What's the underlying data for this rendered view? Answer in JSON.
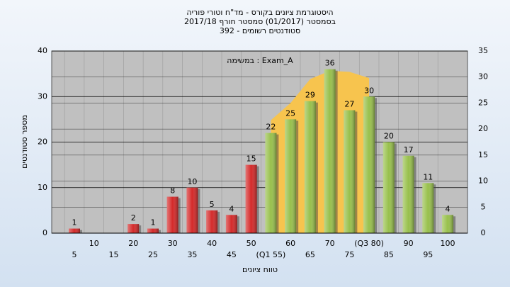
{
  "chart_data": {
    "type": "bar",
    "title": "היסטוגרמת ציונים בקורס - מד\"ח וטורי פוריה",
    "subtitle": [
      "בסמסטר (01/2017) סמסטר חורף 2017/18",
      "392 - סטודנטים רשומים"
    ],
    "annotation": "במשימה : Exam_A",
    "x_label": "טווח ציונים",
    "y_label": "מספר סטודנטים",
    "categories": [
      "5",
      "10",
      "15",
      "20",
      "25",
      "30",
      "35",
      "40",
      "45",
      "50",
      "(Q1 55)",
      "60",
      "65",
      "70",
      "75",
      "(Q3 80)",
      "85",
      "90",
      "95",
      "100"
    ],
    "series": [
      {
        "type": "bar",
        "color": "#d42a2a",
        "values": [
          1,
          null,
          null,
          2,
          1,
          8,
          10,
          5,
          4,
          15,
          null,
          null,
          null,
          null,
          null,
          null,
          null,
          null,
          null,
          null
        ]
      },
      {
        "type": "bar",
        "color": "#98c04c",
        "values": [
          null,
          null,
          null,
          null,
          null,
          null,
          null,
          null,
          null,
          null,
          22,
          25,
          29,
          36,
          27,
          30,
          20,
          17,
          11,
          4
        ]
      },
      {
        "type": "area",
        "axis": "y2",
        "color": "#f7c44e",
        "values": [
          null,
          null,
          null,
          null,
          null,
          null,
          null,
          null,
          null,
          null,
          21.7,
          25,
          29.6,
          31.2,
          31,
          29.8,
          null,
          null,
          null,
          null
        ]
      }
    ],
    "ylim": [
      0,
      40
    ],
    "yticks": [
      0,
      10,
      20,
      30,
      40
    ],
    "y2lim": [
      0,
      35
    ],
    "y2ticks": [
      0,
      5,
      10,
      15,
      20,
      25,
      30,
      35
    ],
    "grid": true
  }
}
